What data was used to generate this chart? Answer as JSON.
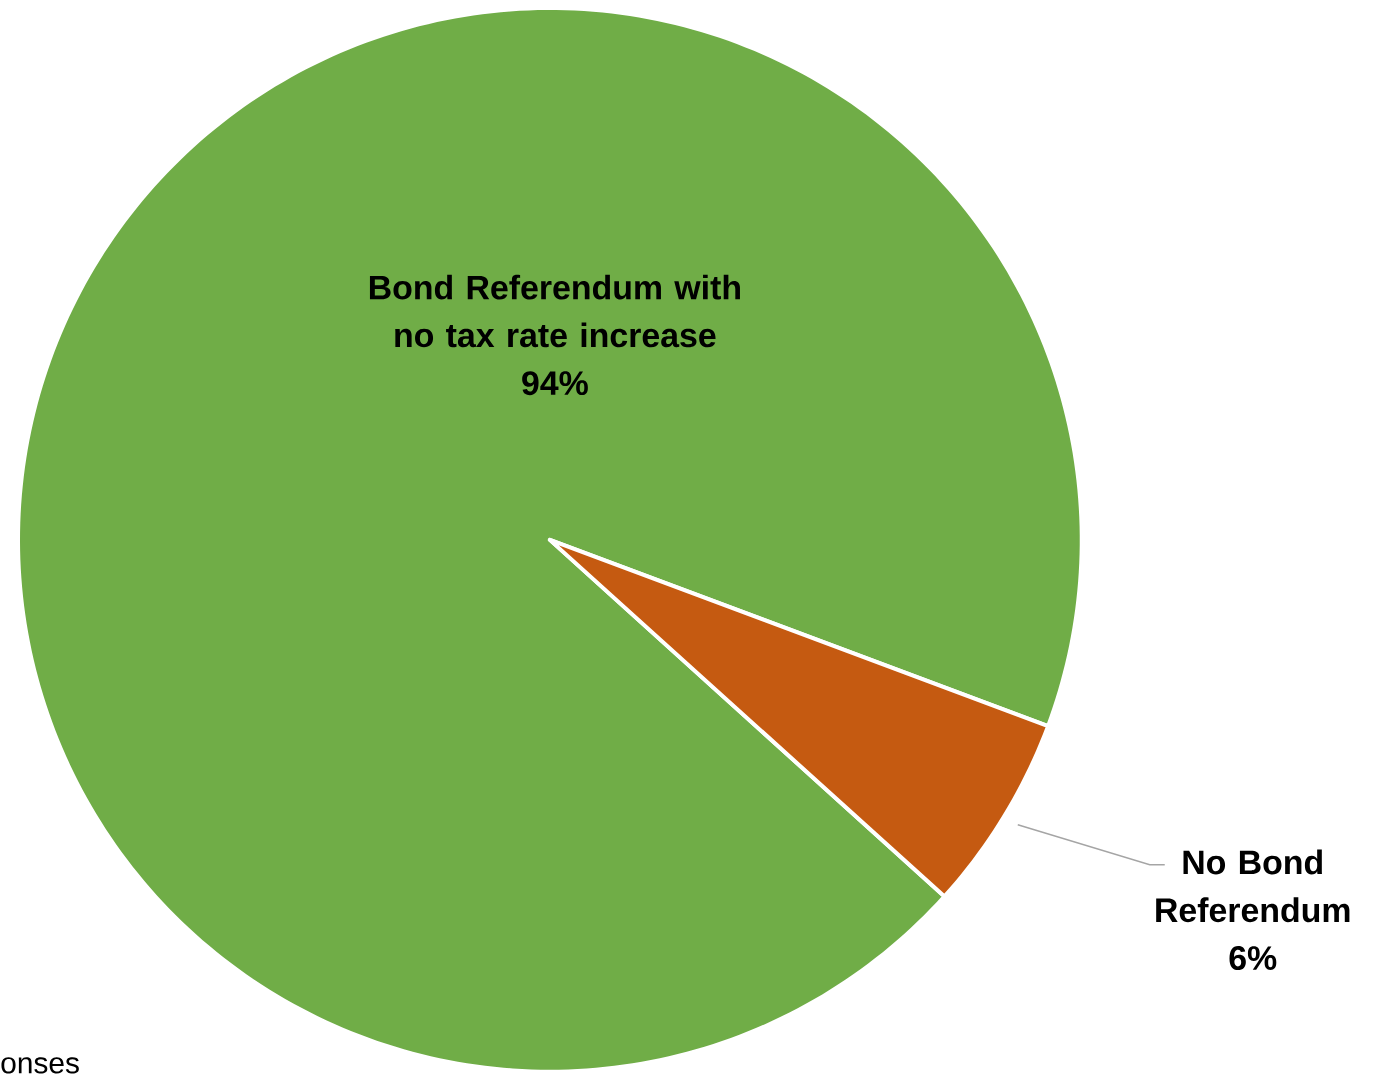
{
  "chart_data": {
    "type": "pie",
    "categories": [
      "Bond Referendum with no tax rate increase",
      "No Bond Referendum"
    ],
    "values": [
      94,
      6
    ],
    "colors": [
      "#70ad47",
      "#c55a11"
    ],
    "value_labels": [
      "94%",
      "6%"
    ],
    "annotations": [
      "onses"
    ]
  }
}
